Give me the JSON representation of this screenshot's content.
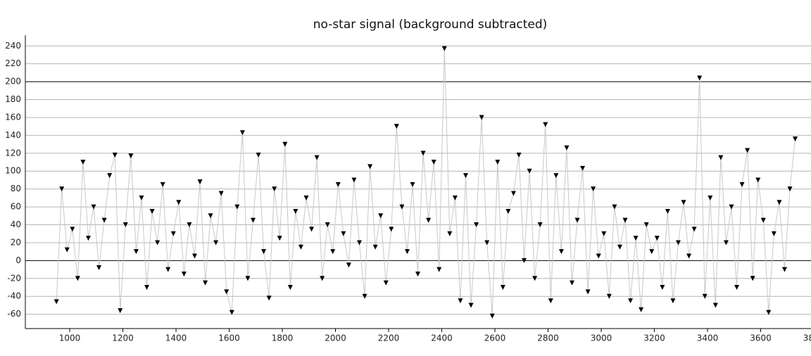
{
  "chart_data": {
    "type": "line",
    "title": "no-star signal (background subtracted)",
    "x": [
      950,
      970,
      990,
      1010,
      1030,
      1050,
      1070,
      1090,
      1110,
      1130,
      1150,
      1170,
      1190,
      1210,
      1230,
      1250,
      1270,
      1290,
      1310,
      1330,
      1350,
      1370,
      1390,
      1410,
      1430,
      1450,
      1470,
      1490,
      1510,
      1530,
      1550,
      1570,
      1590,
      1610,
      1630,
      1650,
      1670,
      1690,
      1710,
      1730,
      1750,
      1770,
      1790,
      1810,
      1830,
      1850,
      1870,
      1890,
      1910,
      1930,
      1950,
      1970,
      1990,
      2010,
      2030,
      2050,
      2070,
      2090,
      2110,
      2130,
      2150,
      2170,
      2190,
      2210,
      2230,
      2250,
      2270,
      2290,
      2310,
      2330,
      2350,
      2370,
      2390,
      2410,
      2430,
      2450,
      2470,
      2490,
      2510,
      2530,
      2550,
      2570,
      2590,
      2610,
      2630,
      2650,
      2670,
      2690,
      2710,
      2730,
      2750,
      2770,
      2790,
      2810,
      2830,
      2850,
      2870,
      2890,
      2910,
      2930,
      2950,
      2970,
      2990,
      3010,
      3030,
      3050,
      3070,
      3090,
      3110,
      3130,
      3150,
      3170,
      3190,
      3210,
      3230,
      3250,
      3270,
      3290,
      3310,
      3330,
      3350,
      3370,
      3390,
      3410,
      3430,
      3450,
      3470,
      3490,
      3510,
      3530,
      3550,
      3570,
      3590,
      3610,
      3630,
      3650,
      3670,
      3690,
      3710,
      3730
    ],
    "values": [
      -46,
      80,
      12,
      35,
      -20,
      110,
      25,
      60,
      -8,
      45,
      95,
      118,
      -56,
      40,
      117,
      10,
      70,
      -30,
      55,
      20,
      85,
      -10,
      30,
      65,
      -15,
      40,
      5,
      88,
      -25,
      50,
      20,
      75,
      -35,
      -58,
      60,
      143,
      -20,
      45,
      118,
      10,
      -42,
      80,
      25,
      130,
      -30,
      55,
      15,
      70,
      35,
      115,
      -20,
      40,
      10,
      85,
      30,
      -5,
      90,
      20,
      -40,
      105,
      15,
      50,
      -25,
      35,
      150,
      60,
      10,
      85,
      -15,
      120,
      45,
      110,
      -10,
      237,
      30,
      70,
      -45,
      95,
      -50,
      40,
      160,
      20,
      -62,
      110,
      -30,
      55,
      75,
      118,
      0,
      100,
      -20,
      40,
      152,
      -45,
      95,
      10,
      126,
      -25,
      45,
      103,
      -35,
      80,
      5,
      30,
      -40,
      60,
      15,
      45,
      -45,
      25,
      -55,
      40,
      10,
      25,
      -30,
      55,
      -45,
      20,
      65,
      5,
      35,
      204,
      -40,
      70,
      -50,
      115,
      20,
      60,
      -30,
      85,
      123,
      -20,
      90,
      45,
      -58,
      30,
      65,
      -10,
      80,
      136
    ],
    "color": "#000000",
    "line_color": "#c8c8c8",
    "xlim": [
      833,
      3800
    ],
    "xticks": [
      1000,
      1200,
      1400,
      1600,
      1800,
      2000,
      2200,
      2400,
      2600,
      2800,
      3000,
      3200,
      3400,
      3600,
      3800
    ],
    "ylim": [
      -76,
      252
    ],
    "yticks": [
      -60,
      -40,
      -20,
      0,
      20,
      40,
      60,
      80,
      100,
      120,
      140,
      160,
      180,
      200,
      220,
      240
    ],
    "grid": true
  }
}
